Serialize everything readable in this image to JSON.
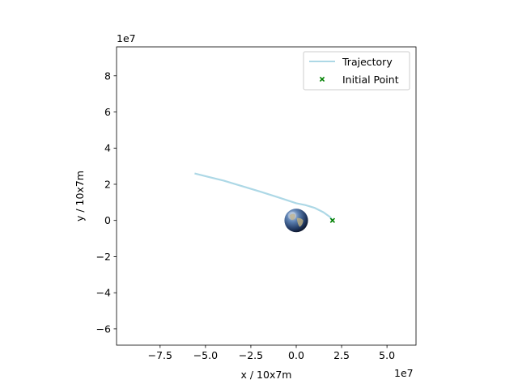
{
  "chart_data": {
    "type": "line",
    "xlabel": "x / 10x7m",
    "ylabel": "y / 10x7m",
    "x_offset_label": "1e7",
    "y_offset_label": "1e7",
    "xlim": [
      -9.9,
      6.6
    ],
    "ylim": [
      -6.9,
      9.6
    ],
    "xticks": [
      -7.5,
      -5.0,
      -2.5,
      0.0,
      2.5,
      5.0
    ],
    "xtick_labels": [
      "−7.5",
      "−5.0",
      "−2.5",
      "0.0",
      "2.5",
      "5.0"
    ],
    "yticks": [
      -6,
      -4,
      -2,
      0,
      2,
      4,
      6,
      8
    ],
    "ytick_labels": [
      "−6",
      "−4",
      "−2",
      "0",
      "2",
      "4",
      "6",
      "8"
    ],
    "grid": false,
    "legend_position": "top-right",
    "series": [
      {
        "name": "Trajectory",
        "kind": "line",
        "color": "#add8e6",
        "x": [
          2.0,
          1.85,
          1.5,
          1.0,
          0.5,
          0.0,
          -1.0,
          -2.0,
          -3.0,
          -4.0,
          -5.0,
          -5.6
        ],
        "y": [
          0.0,
          0.2,
          0.45,
          0.7,
          0.85,
          0.95,
          1.28,
          1.6,
          1.9,
          2.2,
          2.45,
          2.6
        ]
      },
      {
        "name": "Initial Point",
        "kind": "scatter",
        "marker": "x",
        "color": "#008000",
        "x": [
          2.0
        ],
        "y": [
          0.0
        ]
      }
    ],
    "image": {
      "name": "earth",
      "center": [
        0.0,
        0.0
      ],
      "radius": 0.65
    }
  }
}
